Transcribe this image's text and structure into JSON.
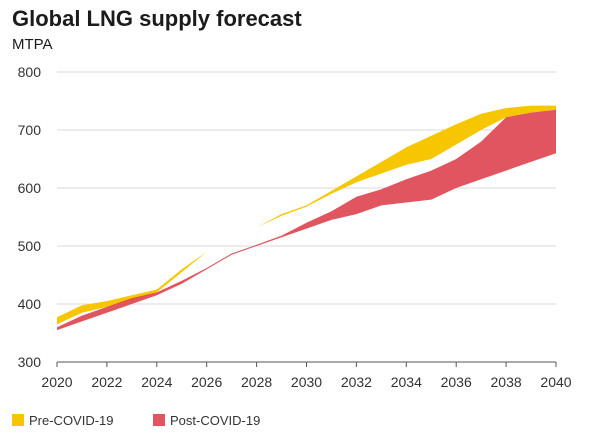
{
  "chart_data": {
    "type": "area",
    "title": "Global LNG supply forecast",
    "subtitle": "MTPA",
    "xlabel": "",
    "ylabel": "",
    "xlim": [
      2020,
      2040
    ],
    "ylim": [
      300,
      800
    ],
    "x_ticks": [
      2020,
      2022,
      2024,
      2026,
      2028,
      2030,
      2032,
      2034,
      2036,
      2038,
      2040
    ],
    "y_ticks": [
      300,
      400,
      500,
      600,
      700,
      800
    ],
    "grid": true,
    "legend_position": "bottom-left",
    "x": [
      2020,
      2021,
      2022,
      2023,
      2024,
      2025,
      2026,
      2027,
      2028,
      2029,
      2030,
      2031,
      2032,
      2033,
      2034,
      2035,
      2036,
      2037,
      2038,
      2039,
      2040
    ],
    "series": [
      {
        "name": "Pre-COVID-19",
        "color": "#F6C700",
        "low": [
          365,
          385,
          395,
          408,
          420,
          455,
          490,
          512,
          532,
          552,
          568,
          590,
          610,
          625,
          640,
          650,
          675,
          700,
          722,
          730,
          735
        ],
        "high": [
          377,
          398,
          405,
          415,
          425,
          460,
          490,
          512,
          532,
          555,
          570,
          595,
          620,
          645,
          670,
          690,
          710,
          728,
          738,
          742,
          742
        ]
      },
      {
        "name": "Post-COVID-19",
        "color": "#E0555F",
        "low": [
          355,
          370,
          385,
          400,
          415,
          435,
          460,
          485,
          500,
          515,
          530,
          545,
          555,
          570,
          575,
          580,
          600,
          615,
          630,
          645,
          660
        ],
        "high": [
          360,
          380,
          395,
          410,
          420,
          440,
          462,
          487,
          502,
          518,
          540,
          560,
          585,
          598,
          615,
          630,
          650,
          680,
          722,
          730,
          735
        ]
      }
    ],
    "overlap_color": "#E8541E"
  }
}
